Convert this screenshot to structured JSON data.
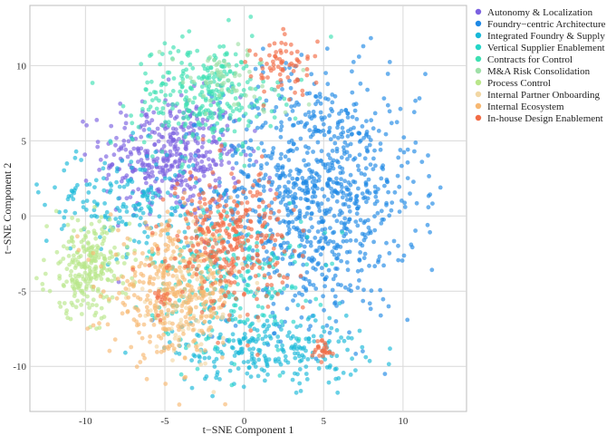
{
  "chart_data": {
    "type": "scatter",
    "xlabel": "t−SNE Component 1",
    "ylabel": "t−SNE Component 2",
    "xlim": [
      -13.5,
      14
    ],
    "ylim": [
      -13,
      14
    ],
    "xticks": [
      -10,
      -5,
      0,
      5,
      10
    ],
    "yticks": [
      -10,
      -5,
      0,
      5,
      10
    ],
    "grid": true,
    "legend_position": "right",
    "series": [
      {
        "name": "Autonomy & Localization",
        "color": "#7b61e0",
        "clusters": [
          {
            "cx": -4.5,
            "cy": 4.0,
            "sx": 2.2,
            "sy": 2.0,
            "n": 420
          }
        ]
      },
      {
        "name": "Foundry−centric Architecture",
        "color": "#1e88e5",
        "clusters": [
          {
            "cx": 4.5,
            "cy": 1.5,
            "sx": 3.2,
            "sy": 4.0,
            "n": 950
          }
        ]
      },
      {
        "name": "Integrated Foundry & Supply",
        "color": "#18b8d8",
        "clusters": [
          {
            "cx": -7.5,
            "cy": 1.0,
            "sx": 2.5,
            "sy": 1.8,
            "n": 180
          },
          {
            "cx": 1.5,
            "cy": -8.8,
            "sx": 3.0,
            "sy": 1.2,
            "n": 260
          }
        ]
      },
      {
        "name": "Vertical Supplier Enablement",
        "color": "#25d6c8",
        "clusters": [
          {
            "cx": -1.0,
            "cy": -4.0,
            "sx": 2.5,
            "sy": 2.5,
            "n": 260
          }
        ]
      },
      {
        "name": "Contracts for Control",
        "color": "#3ee0b2",
        "clusters": [
          {
            "cx": -2.5,
            "cy": 8.0,
            "sx": 2.2,
            "sy": 1.8,
            "n": 300
          }
        ]
      },
      {
        "name": "M&A Risk Consolidation",
        "color": "#9fe0a8",
        "clusters": [
          {
            "cx": -1.0,
            "cy": 9.0,
            "sx": 2.0,
            "sy": 1.2,
            "n": 60
          }
        ]
      },
      {
        "name": "Process Control",
        "color": "#b9e68a",
        "clusters": [
          {
            "cx": -9.8,
            "cy": -3.5,
            "sx": 1.3,
            "sy": 1.6,
            "n": 260
          }
        ]
      },
      {
        "name": "Internal Partner Onboarding",
        "color": "#f2d7a4",
        "clusters": [
          {
            "cx": -3.5,
            "cy": -5.5,
            "sx": 1.8,
            "sy": 2.0,
            "n": 120
          }
        ]
      },
      {
        "name": "Internal Ecosystem",
        "color": "#f7b872",
        "clusters": [
          {
            "cx": -4.5,
            "cy": -5.0,
            "sx": 2.0,
            "sy": 2.2,
            "n": 380
          }
        ]
      },
      {
        "name": "In-house Design Enablement",
        "color": "#f26c45",
        "clusters": [
          {
            "cx": -1.0,
            "cy": -1.5,
            "sx": 1.8,
            "sy": 2.2,
            "n": 320
          },
          {
            "cx": 2.5,
            "cy": 10.0,
            "sx": 1.0,
            "sy": 1.0,
            "n": 70
          },
          {
            "cx": 5.0,
            "cy": -9.0,
            "sx": 0.35,
            "sy": 0.4,
            "n": 25
          },
          {
            "cx": -5.2,
            "cy": -5.4,
            "sx": 0.3,
            "sy": 0.3,
            "n": 12
          }
        ]
      }
    ]
  }
}
